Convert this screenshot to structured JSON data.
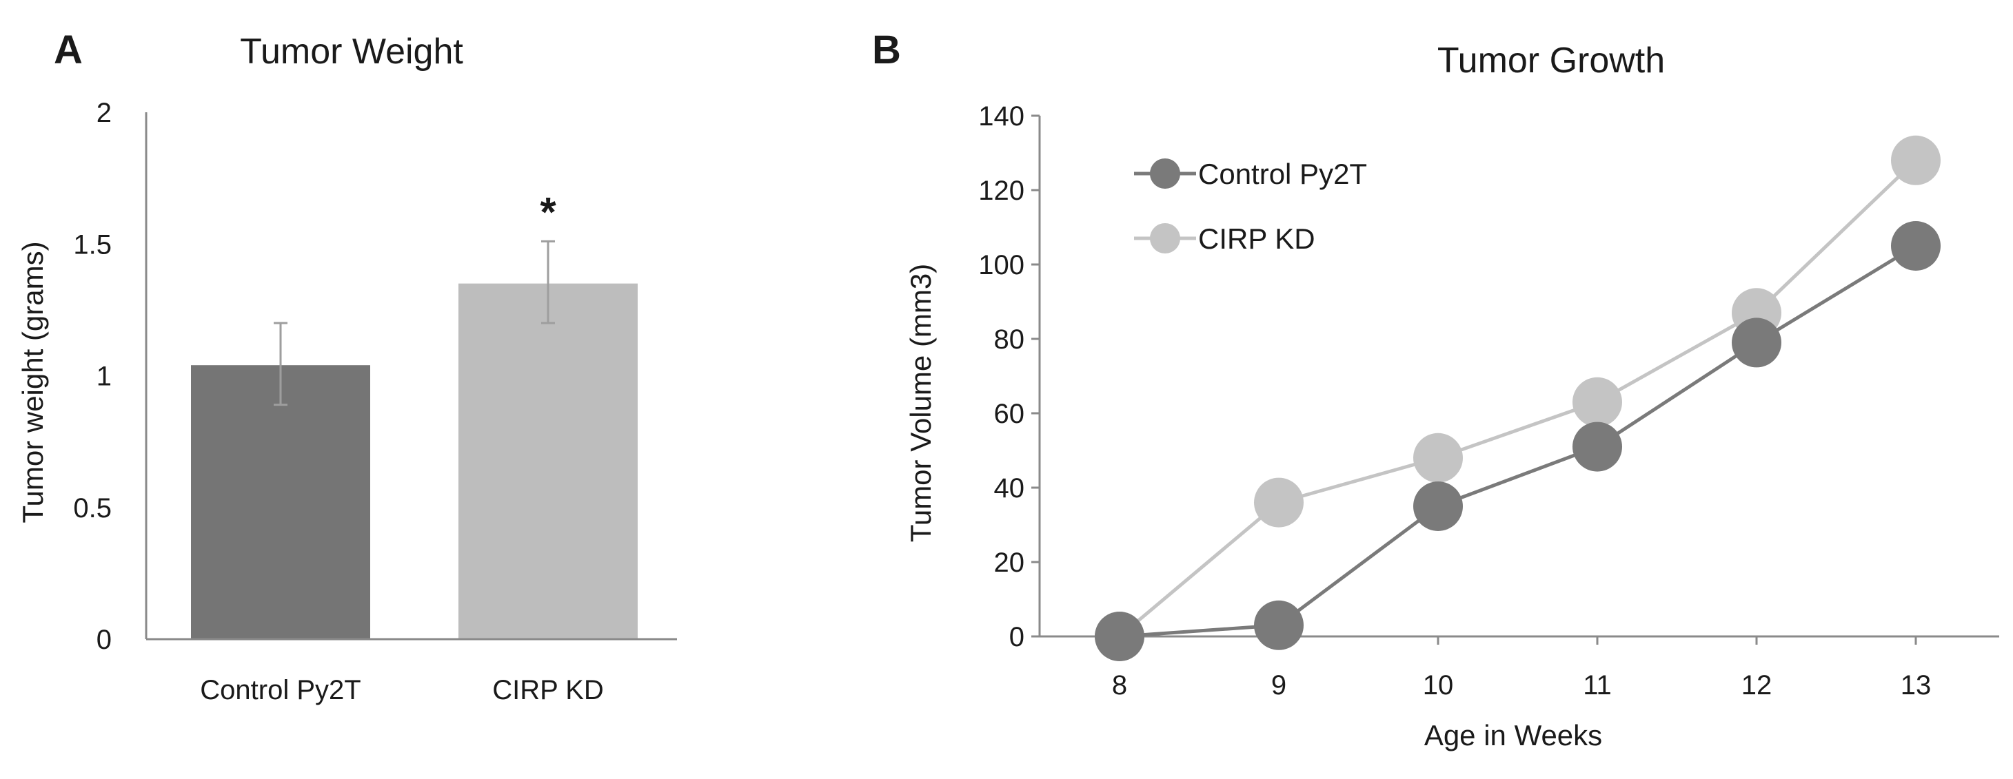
{
  "chart_data": [
    {
      "panel": "A",
      "type": "bar",
      "title": "Tumor Weight",
      "xlabel": "",
      "ylabel": "Tumor weight (grams)",
      "ylim": [
        0,
        2
      ],
      "yticks": [
        "0",
        "0.5",
        "1",
        "1.5",
        "2"
      ],
      "categories": [
        "Control Py2T",
        "CIRP KD"
      ],
      "values": [
        1.04,
        1.35
      ],
      "error": [
        [
          0.89,
          1.2
        ],
        [
          1.2,
          1.51
        ]
      ],
      "colors": [
        "#757575",
        "#bdbdbd"
      ],
      "significance": [
        "",
        "*"
      ]
    },
    {
      "panel": "B",
      "type": "line",
      "title": "Tumor Growth",
      "xlabel": "Age in Weeks",
      "ylabel": "Tumor Volume (mm3)",
      "ylim": [
        0,
        140
      ],
      "yticks": [
        "0",
        "20",
        "40",
        "60",
        "80",
        "100",
        "120",
        "140"
      ],
      "x": [
        "8",
        "9",
        "10",
        "11",
        "12",
        "13"
      ],
      "legend_position": "top-left",
      "series": [
        {
          "name": "Control Py2T",
          "color": "#7a7a7a",
          "values": [
            0,
            3,
            35,
            51,
            79,
            105
          ]
        },
        {
          "name": "CIRP KD",
          "color": "#c4c4c4",
          "values": [
            0,
            36,
            48,
            63,
            87,
            128
          ]
        }
      ]
    }
  ]
}
